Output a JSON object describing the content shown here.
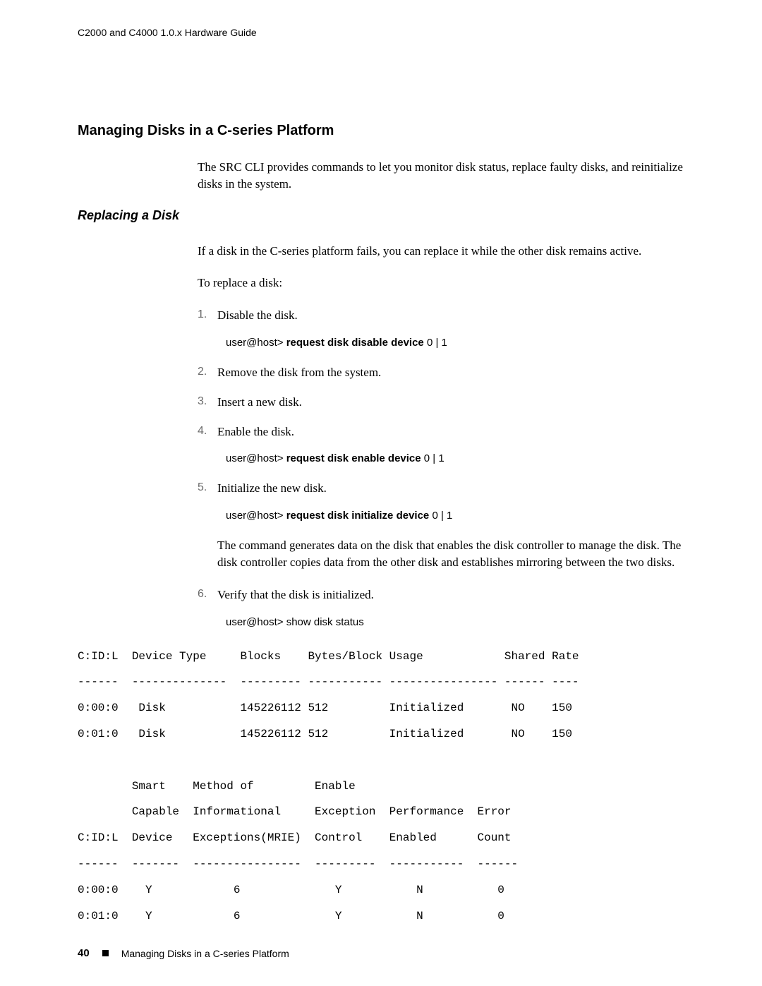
{
  "header": "C2000 and C4000 1.0.x Hardware Guide",
  "heading": "Managing Disks in a C-series Platform",
  "intro": "The SRC CLI provides commands to let you monitor disk status, replace faulty disks, and reinitialize disks in the system.",
  "subheading": "Replacing a Disk",
  "para2": "If a disk in the C-series platform fails, you can replace it while the other disk remains active.",
  "para3": "To replace a disk:",
  "steps": [
    {
      "n": "1.",
      "text": "Disable the disk."
    },
    {
      "n": "2.",
      "text": "Remove the disk from the system."
    },
    {
      "n": "3.",
      "text": "Insert a new disk."
    },
    {
      "n": "4.",
      "text": "Enable the disk."
    },
    {
      "n": "5.",
      "text": "Initialize the new disk."
    },
    {
      "n": "6.",
      "text": "Verify that the disk is initialized."
    }
  ],
  "cmd1": {
    "prompt": "user@host> ",
    "bold": "request disk disable device",
    "tail": " 0 | 1"
  },
  "cmd2": {
    "prompt": "user@host> ",
    "bold": "request disk enable device",
    "tail": " 0 | 1"
  },
  "cmd3": {
    "prompt": "user@host> ",
    "bold": "request disk initialize device",
    "tail": " 0 | 1"
  },
  "cmd3para": "The command generates data on the disk that enables the disk controller to manage the disk. The disk controller copies data from the other disk and establishes mirroring between the two disks.",
  "cmd4": {
    "prompt": "user@host> ",
    "normal": "show disk status"
  },
  "mono_out": "C:ID:L  Device Type     Blocks    Bytes/Block Usage            Shared Rate\n------  --------------  --------- ----------- ---------------- ------ ----\n0:00:0   Disk           145226112 512         Initialized       NO    150\n0:01:0   Disk           145226112 512         Initialized       NO    150\n\n        Smart    Method of         Enable\n        Capable  Informational     Exception  Performance  Error\nC:ID:L  Device   Exceptions(MRIE)  Control    Enabled      Count\n------  -------  ----------------  ---------  -----------  ------\n0:00:0    Y            6              Y           N           0\n0:01:0    Y            6              Y           N           0",
  "footer": {
    "page": "40",
    "text": "Managing Disks in a C-series Platform"
  }
}
